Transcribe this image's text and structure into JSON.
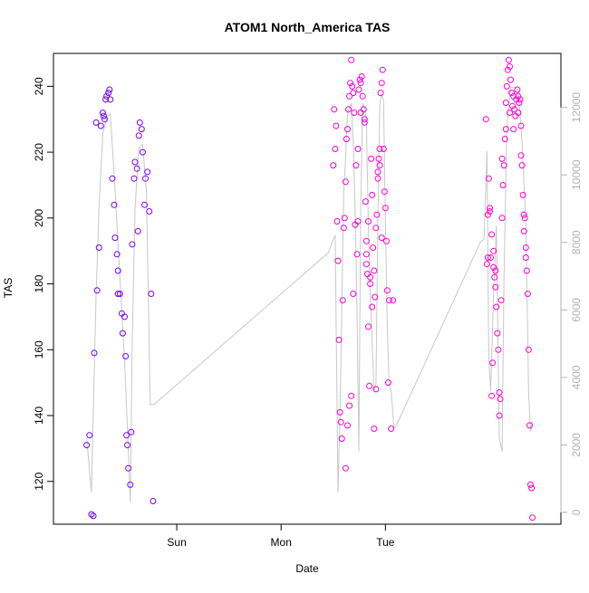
{
  "chart_data": {
    "type": "scatter",
    "title": "ATOM1 North_America TAS",
    "xlabel": "Date",
    "ylabel": "TAS",
    "x_ticks": [
      "Sun",
      "Mon",
      "Tue"
    ],
    "y_ticks": [
      120,
      140,
      160,
      180,
      200,
      220,
      240
    ],
    "y2_ticks": [
      0,
      2000,
      4000,
      6000,
      8000,
      10000,
      12000
    ],
    "ylim": [
      107,
      250
    ],
    "y2lim": [
      -350,
      13600
    ],
    "grid": false,
    "colors": {
      "early": "#6a00ff",
      "late": "#ff00d0",
      "altitude_line": "#c8c8c8",
      "axis": "#000000",
      "right_axis": "#b3b3b3"
    },
    "series": [
      {
        "group": 1,
        "points": [
          [
            0.95,
            131
          ],
          [
            0.98,
            134
          ],
          [
            1.0,
            110
          ],
          [
            1.02,
            109.5
          ],
          [
            1.03,
            159
          ],
          [
            1.06,
            178
          ],
          [
            1.08,
            191
          ],
          [
            1.1,
            228
          ],
          [
            1.12,
            232
          ],
          [
            1.13,
            231
          ],
          [
            1.15,
            236
          ],
          [
            1.16,
            237
          ],
          [
            1.18,
            238
          ],
          [
            1.19,
            239
          ],
          [
            1.2,
            236
          ],
          [
            1.22,
            212
          ],
          [
            1.24,
            204
          ],
          [
            1.25,
            194
          ],
          [
            1.27,
            189
          ],
          [
            1.28,
            184
          ],
          [
            1.3,
            177
          ],
          [
            1.32,
            171
          ],
          [
            1.33,
            165
          ],
          [
            1.35,
            170
          ],
          [
            1.36,
            158
          ],
          [
            1.37,
            134
          ],
          [
            1.38,
            131
          ],
          [
            1.39,
            124
          ],
          [
            1.41,
            119
          ],
          [
            1.42,
            135
          ],
          [
            1.43,
            192
          ],
          [
            1.45,
            212
          ],
          [
            1.46,
            217
          ],
          [
            1.48,
            215
          ],
          [
            1.5,
            225
          ],
          [
            1.51,
            229
          ],
          [
            1.53,
            227
          ],
          [
            1.54,
            220
          ],
          [
            1.56,
            204
          ],
          [
            1.57,
            212
          ],
          [
            1.59,
            214
          ],
          [
            1.61,
            202
          ],
          [
            1.63,
            177
          ],
          [
            1.65,
            114
          ],
          [
            1.05,
            229
          ],
          [
            1.14,
            230
          ],
          [
            1.28,
            177
          ],
          [
            1.49,
            196
          ]
        ]
      },
      {
        "group": 2,
        "points": [
          [
            3.55,
            216
          ],
          [
            3.56,
            233
          ],
          [
            3.57,
            221
          ],
          [
            3.58,
            228
          ],
          [
            3.59,
            199
          ],
          [
            3.6,
            187
          ],
          [
            3.61,
            163
          ],
          [
            3.62,
            141
          ],
          [
            3.63,
            138
          ],
          [
            3.64,
            133
          ],
          [
            3.65,
            175
          ],
          [
            3.66,
            197
          ],
          [
            3.67,
            200
          ],
          [
            3.68,
            211
          ],
          [
            3.69,
            224
          ],
          [
            3.7,
            227
          ],
          [
            3.71,
            233
          ],
          [
            3.72,
            237
          ],
          [
            3.73,
            241
          ],
          [
            3.74,
            248
          ],
          [
            3.75,
            240
          ],
          [
            3.76,
            238
          ],
          [
            3.77,
            232
          ],
          [
            3.78,
            198
          ],
          [
            3.79,
            216
          ],
          [
            3.8,
            189
          ],
          [
            3.81,
            199
          ],
          [
            3.82,
            239
          ],
          [
            3.83,
            242
          ],
          [
            3.84,
            241
          ],
          [
            3.85,
            243
          ],
          [
            3.86,
            237
          ],
          [
            3.87,
            233
          ],
          [
            3.88,
            230
          ],
          [
            3.89,
            205
          ],
          [
            3.9,
            189
          ],
          [
            3.91,
            183
          ],
          [
            3.92,
            167
          ],
          [
            3.93,
            149
          ],
          [
            3.94,
            180
          ],
          [
            3.95,
            218
          ],
          [
            3.96,
            207
          ],
          [
            3.97,
            191
          ],
          [
            3.98,
            184
          ],
          [
            3.99,
            176
          ],
          [
            4.0,
            197
          ],
          [
            4.01,
            201
          ],
          [
            4.02,
            214
          ],
          [
            4.03,
            218
          ],
          [
            4.04,
            221
          ],
          [
            4.05,
            238
          ],
          [
            4.06,
            241
          ],
          [
            4.07,
            245
          ],
          [
            4.08,
            221
          ],
          [
            4.09,
            208
          ],
          [
            4.1,
            203
          ],
          [
            4.11,
            193
          ],
          [
            4.12,
            178
          ],
          [
            4.13,
            150
          ],
          [
            4.14,
            175
          ],
          [
            4.16,
            136
          ],
          [
            4.18,
            175
          ],
          [
            3.68,
            124
          ],
          [
            3.7,
            137
          ],
          [
            3.72,
            143
          ],
          [
            3.74,
            146
          ],
          [
            3.9,
            193
          ],
          [
            3.92,
            199
          ],
          [
            3.94,
            182
          ],
          [
            3.96,
            173
          ],
          [
            3.98,
            136
          ],
          [
            4.0,
            148
          ],
          [
            3.76,
            177
          ],
          [
            3.81,
            221
          ],
          [
            3.84,
            232
          ],
          [
            3.88,
            229
          ],
          [
            3.9,
            186
          ],
          [
            4.02,
            212
          ],
          [
            4.04,
            216
          ],
          [
            4.06,
            194
          ]
        ]
      },
      {
        "group": 3,
        "points": [
          [
            5.16,
            230
          ],
          [
            5.17,
            186
          ],
          [
            5.18,
            188
          ],
          [
            5.19,
            212
          ],
          [
            5.2,
            203
          ],
          [
            5.21,
            188
          ],
          [
            5.22,
            146
          ],
          [
            5.23,
            156
          ],
          [
            5.24,
            185
          ],
          [
            5.25,
            182
          ],
          [
            5.26,
            179
          ],
          [
            5.27,
            173
          ],
          [
            5.28,
            165
          ],
          [
            5.29,
            160
          ],
          [
            5.3,
            140
          ],
          [
            5.31,
            145
          ],
          [
            5.32,
            175
          ],
          [
            5.33,
            200
          ],
          [
            5.34,
            210
          ],
          [
            5.35,
            216
          ],
          [
            5.36,
            224
          ],
          [
            5.37,
            235
          ],
          [
            5.38,
            240
          ],
          [
            5.39,
            245
          ],
          [
            5.4,
            248
          ],
          [
            5.41,
            246
          ],
          [
            5.42,
            242
          ],
          [
            5.43,
            238
          ],
          [
            5.44,
            234
          ],
          [
            5.45,
            237
          ],
          [
            5.46,
            233
          ],
          [
            5.47,
            231
          ],
          [
            5.48,
            236
          ],
          [
            5.49,
            239
          ],
          [
            5.5,
            237
          ],
          [
            5.51,
            235
          ],
          [
            5.52,
            236
          ],
          [
            5.53,
            228
          ],
          [
            5.54,
            216
          ],
          [
            5.55,
            207
          ],
          [
            5.56,
            201
          ],
          [
            5.57,
            200
          ],
          [
            5.58,
            191
          ],
          [
            5.59,
            184
          ],
          [
            5.6,
            177
          ],
          [
            5.61,
            160
          ],
          [
            5.62,
            137
          ],
          [
            5.63,
            119
          ],
          [
            5.64,
            118
          ],
          [
            5.65,
            109
          ],
          [
            5.18,
            201
          ],
          [
            5.2,
            202
          ],
          [
            5.22,
            195
          ],
          [
            5.24,
            190
          ],
          [
            5.26,
            184
          ],
          [
            5.3,
            147
          ],
          [
            5.33,
            218
          ],
          [
            5.37,
            227
          ],
          [
            5.41,
            232
          ],
          [
            5.45,
            227
          ],
          [
            5.5,
            232
          ],
          [
            5.53,
            219
          ],
          [
            5.56,
            196
          ],
          [
            5.58,
            188
          ]
        ]
      }
    ],
    "altitude_line": [
      [
        0.95,
        2200
      ],
      [
        1.0,
        600
      ],
      [
        1.02,
        3000
      ],
      [
        1.05,
        6500
      ],
      [
        1.08,
        9000
      ],
      [
        1.12,
        11200
      ],
      [
        1.16,
        11700
      ],
      [
        1.2,
        11800
      ],
      [
        1.24,
        10000
      ],
      [
        1.28,
        8000
      ],
      [
        1.32,
        6000
      ],
      [
        1.35,
        4500
      ],
      [
        1.38,
        2500
      ],
      [
        1.41,
        300
      ],
      [
        1.43,
        5000
      ],
      [
        1.46,
        9000
      ],
      [
        1.5,
        10800
      ],
      [
        1.54,
        10900
      ],
      [
        1.58,
        9500
      ],
      [
        1.62,
        3200
      ],
      [
        1.66,
        3200
      ],
      [
        3.5,
        7700
      ],
      [
        3.55,
        8100
      ],
      [
        3.57,
        8200
      ],
      [
        3.6,
        600
      ],
      [
        3.62,
        2800
      ],
      [
        3.64,
        6000
      ],
      [
        3.66,
        9500
      ],
      [
        3.68,
        10500
      ],
      [
        3.7,
        11800
      ],
      [
        3.72,
        12000
      ],
      [
        3.74,
        12100
      ],
      [
        3.76,
        11000
      ],
      [
        3.78,
        9000
      ],
      [
        3.8,
        6000
      ],
      [
        3.82,
        1800
      ],
      [
        3.84,
        9000
      ],
      [
        3.86,
        12100
      ],
      [
        3.88,
        12000
      ],
      [
        3.9,
        11500
      ],
      [
        3.92,
        8500
      ],
      [
        3.94,
        6500
      ],
      [
        3.96,
        5000
      ],
      [
        3.98,
        3600
      ],
      [
        4.0,
        3800
      ],
      [
        4.02,
        8600
      ],
      [
        4.04,
        12100
      ],
      [
        4.06,
        12400
      ],
      [
        4.08,
        12200
      ],
      [
        4.1,
        8500
      ],
      [
        4.12,
        5500
      ],
      [
        4.14,
        3800
      ],
      [
        4.16,
        3600
      ],
      [
        4.19,
        2500
      ],
      [
        4.22,
        2600
      ],
      [
        5.1,
        8000
      ],
      [
        5.14,
        8100
      ],
      [
        5.17,
        10700
      ],
      [
        5.19,
        4600
      ],
      [
        5.21,
        3600
      ],
      [
        5.24,
        6500
      ],
      [
        5.27,
        8500
      ],
      [
        5.3,
        2200
      ],
      [
        5.33,
        1800
      ],
      [
        5.35,
        7000
      ],
      [
        5.38,
        11400
      ],
      [
        5.42,
        12600
      ],
      [
        5.46,
        12600
      ],
      [
        5.5,
        12500
      ],
      [
        5.54,
        11000
      ],
      [
        5.58,
        8500
      ],
      [
        5.61,
        3500
      ],
      [
        5.63,
        2400
      ],
      [
        5.65,
        2700
      ]
    ]
  }
}
